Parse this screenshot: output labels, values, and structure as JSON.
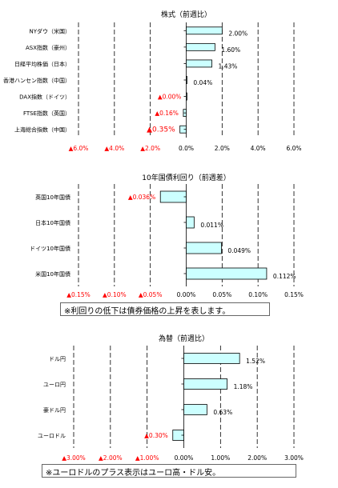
{
  "colors": {
    "bar_fill": "#ccffff",
    "bar_stroke": "#000000",
    "negative_text": "#ff0000",
    "text": "#000000"
  },
  "chart_data": [
    {
      "type": "bar",
      "orientation": "horizontal",
      "title": "株式（前週比）",
      "categories": [
        "NYダウ（米国）",
        "ASX指数（豪州）",
        "日経平均株価（日本）",
        "香港ハンセン指数（中国）",
        "DAX指数（ドイツ）",
        "FTSE指数（英国）",
        "上海総合指数（中国）"
      ],
      "values": [
        2.0,
        1.6,
        1.43,
        0.04,
        -0.003,
        -0.16,
        -0.35
      ],
      "value_labels": [
        "2.00%",
        "1.60%",
        "1.43%",
        "0.04%",
        "▲0.00%",
        "▲0.16%",
        "▲0.35%"
      ],
      "xlim": [
        -6.0,
        6.0
      ],
      "ticks": [
        -6,
        -4,
        -2,
        0,
        2,
        4,
        6
      ],
      "tick_labels": [
        "▲6.0%",
        "▲4.0%",
        "▲2.0%",
        "0.0%",
        "2.0%",
        "4.0%",
        "6.0%"
      ],
      "grid": "dashed vertical"
    },
    {
      "type": "bar",
      "orientation": "horizontal",
      "title": "10年国債利回り（前週差）",
      "categories": [
        "英国10年国債",
        "日本10年国債",
        "ドイツ10年国債",
        "米国10年国債"
      ],
      "values": [
        -0.036,
        0.011,
        0.049,
        0.112
      ],
      "value_labels": [
        "▲0.036%",
        "0.011%",
        "0.049%",
        "0.112%"
      ],
      "xlim": [
        -0.15,
        0.15
      ],
      "ticks": [
        -0.15,
        -0.1,
        -0.05,
        0,
        0.05,
        0.1,
        0.15
      ],
      "tick_labels": [
        "▲0.15%",
        "▲0.10%",
        "▲0.05%",
        "0.00%",
        "0.05%",
        "0.10%",
        "0.15%"
      ],
      "grid": "dashed vertical",
      "note": "※利回りの低下は債券価格の上昇を表します。"
    },
    {
      "type": "bar",
      "orientation": "horizontal",
      "title": "為替（前週比）",
      "categories": [
        "ドル円",
        "ユーロ円",
        "豪ドル円",
        "ユーロドル"
      ],
      "values": [
        1.52,
        1.18,
        0.63,
        -0.3
      ],
      "value_labels": [
        "1.52%",
        "1.18%",
        "0.63%",
        "▲0.30%"
      ],
      "xlim": [
        -3.0,
        3.0
      ],
      "ticks": [
        -3,
        -2,
        -1,
        0,
        1,
        2,
        3
      ],
      "tick_labels": [
        "▲3.00%",
        "▲2.00%",
        "▲1.00%",
        "0.00%",
        "1.00%",
        "2.00%",
        "3.00%"
      ],
      "grid": "dashed vertical",
      "note": "※ユーロドルのプラス表示はユーロ高・ドル安。"
    }
  ]
}
